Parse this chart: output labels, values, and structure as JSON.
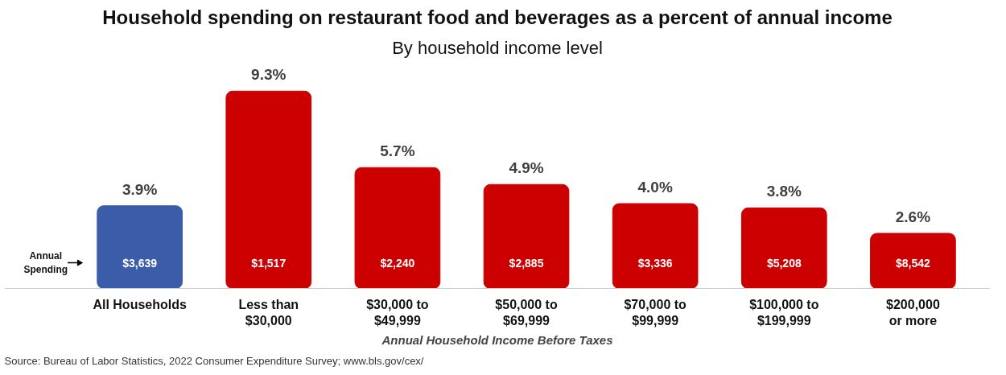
{
  "chart_data": {
    "type": "bar",
    "title": "Household spending on restaurant food and beverages as a percent of annual income",
    "subtitle": "By household income level",
    "xlabel": "Annual Household Income Before Taxes",
    "categories": [
      "All Households",
      "Less than\n$30,000",
      "$30,000 to\n$49,999",
      "$50,000 to\n$69,999",
      "$70,000 to\n$99,999",
      "$100,000 to\n$199,999",
      "$200,000\nor more"
    ],
    "values": [
      3.9,
      9.3,
      5.7,
      4.9,
      4.0,
      3.8,
      2.6
    ],
    "colors": [
      "#3b5ca8",
      "#cc0000",
      "#cc0000",
      "#cc0000",
      "#cc0000",
      "#cc0000",
      "#cc0000"
    ],
    "data_labels": true,
    "value_labels": [
      "3.9%",
      "9.3%",
      "5.7%",
      "4.9%",
      "4.0%",
      "3.8%",
      "2.6%"
    ],
    "annotations": [
      "$3,639",
      "$1,517",
      "$2,240",
      "$2,885",
      "$3,336",
      "$5,208",
      "$8,542",
      "Annual\nSpending",
      "Source: Bureau of Labor Statistics, 2022 Consumer Expenditure Survey; www.bls.gov/cex/"
    ],
    "grid": false
  }
}
